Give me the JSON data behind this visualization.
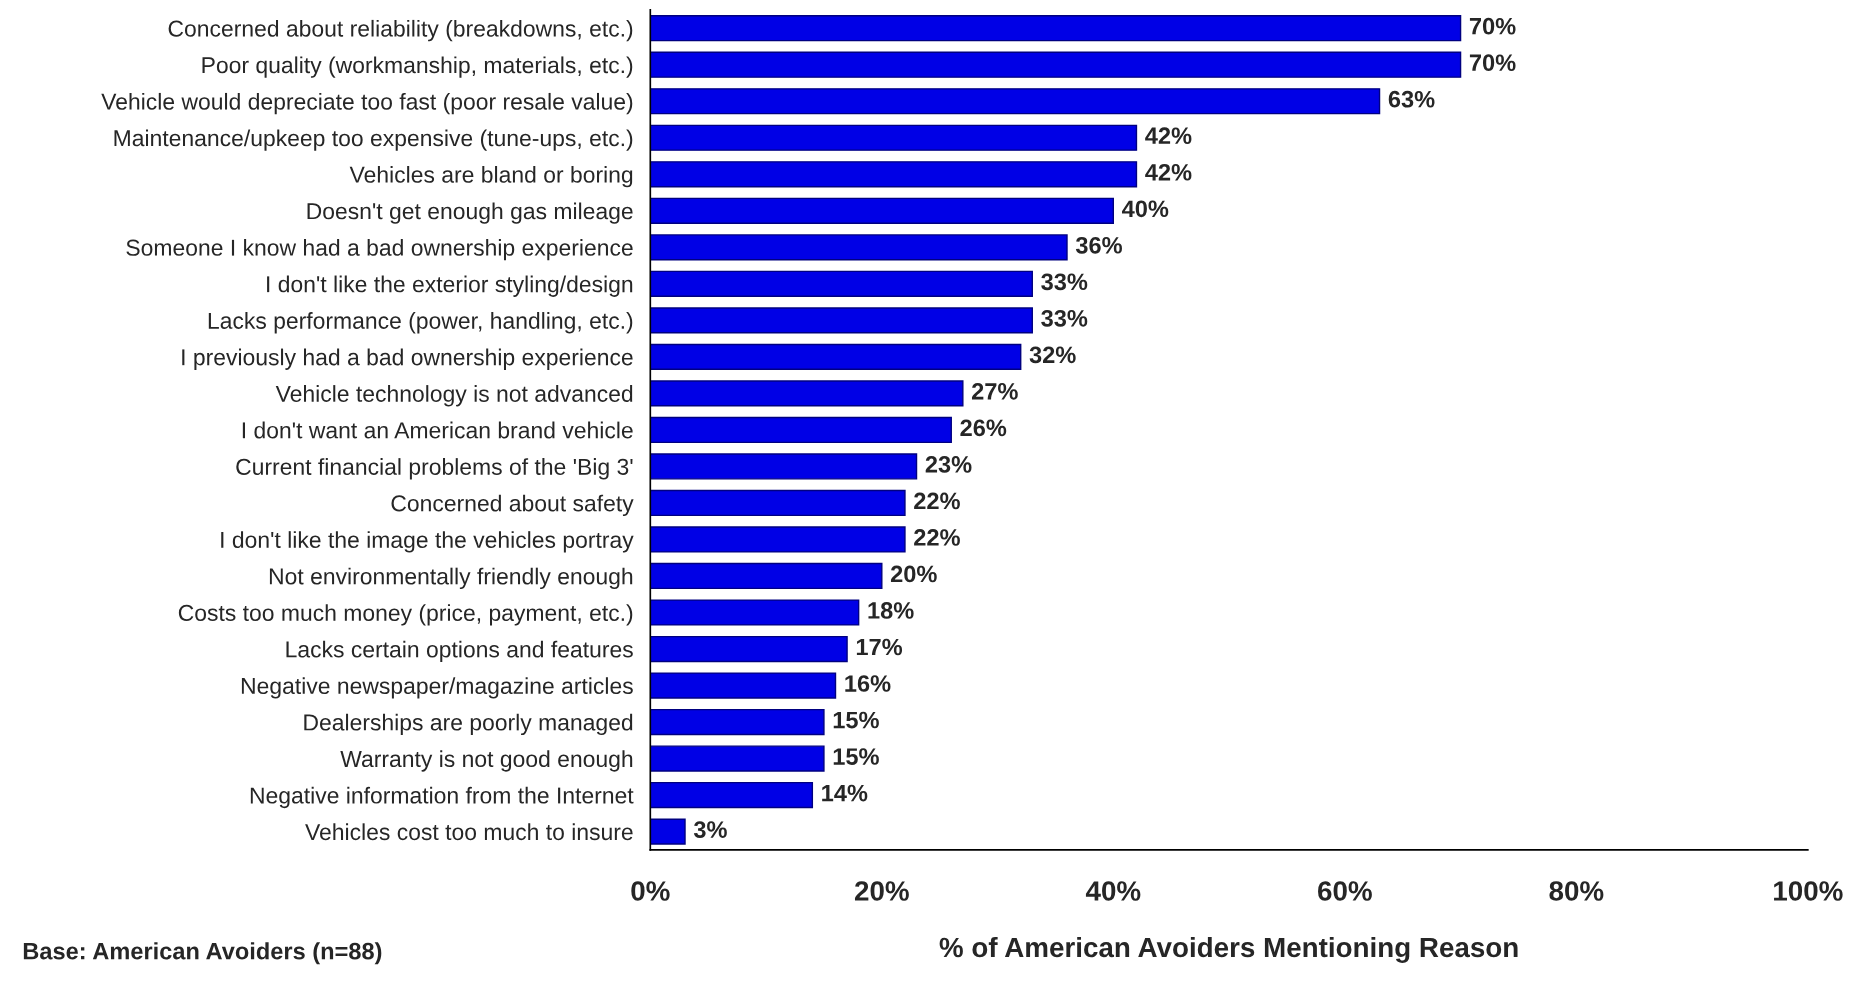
{
  "chart_data": {
    "type": "bar",
    "orientation": "horizontal",
    "xlabel": "% of American Avoiders Mentioning Reason",
    "annotations": [
      "Base: American Avoiders (n=88)"
    ],
    "categories": [
      "Concerned about reliability (breakdowns, etc.)",
      "Poor quality (workmanship, materials, etc.)",
      "Vehicle would depreciate too fast (poor resale value)",
      "Maintenance/upkeep too expensive (tune-ups, etc.)",
      "Vehicles are bland or boring",
      "Doesn't get enough gas mileage",
      "Someone I know had a bad ownership experience",
      "I don't like the exterior styling/design",
      "Lacks performance (power, handling, etc.)",
      "I previously had a bad ownership experience",
      "Vehicle technology is not advanced",
      "I don't want an American brand vehicle",
      "Current financial problems of the 'Big 3'",
      "Concerned about safety",
      "I don't like the image the vehicles portray",
      "Not environmentally friendly enough",
      "Costs too much money (price, payment, etc.)",
      "Lacks certain options and features",
      "Negative newspaper/magazine articles",
      "Dealerships are poorly managed",
      "Warranty is not good enough",
      "Negative information from the Internet",
      "Vehicles cost too much to insure"
    ],
    "values": [
      70,
      70,
      63,
      42,
      42,
      40,
      36,
      33,
      33,
      32,
      27,
      26,
      23,
      22,
      22,
      20,
      18,
      17,
      16,
      15,
      15,
      14,
      3
    ],
    "value_labels": [
      "70%",
      "70%",
      "63%",
      "42%",
      "42%",
      "40%",
      "36%",
      "33%",
      "33%",
      "32%",
      "27%",
      "26%",
      "23%",
      "22%",
      "22%",
      "20%",
      "18%",
      "17%",
      "16%",
      "15%",
      "15%",
      "14%",
      "3%"
    ],
    "color": "#0000e6",
    "xlim": [
      0,
      100
    ],
    "xticks": [
      {
        "value": 0,
        "label": "0%"
      },
      {
        "value": 20,
        "label": "20%"
      },
      {
        "value": 40,
        "label": "40%"
      },
      {
        "value": 60,
        "label": "60%"
      },
      {
        "value": 80,
        "label": "80%"
      },
      {
        "value": 100,
        "label": "100%"
      }
    ],
    "grid": false
  }
}
